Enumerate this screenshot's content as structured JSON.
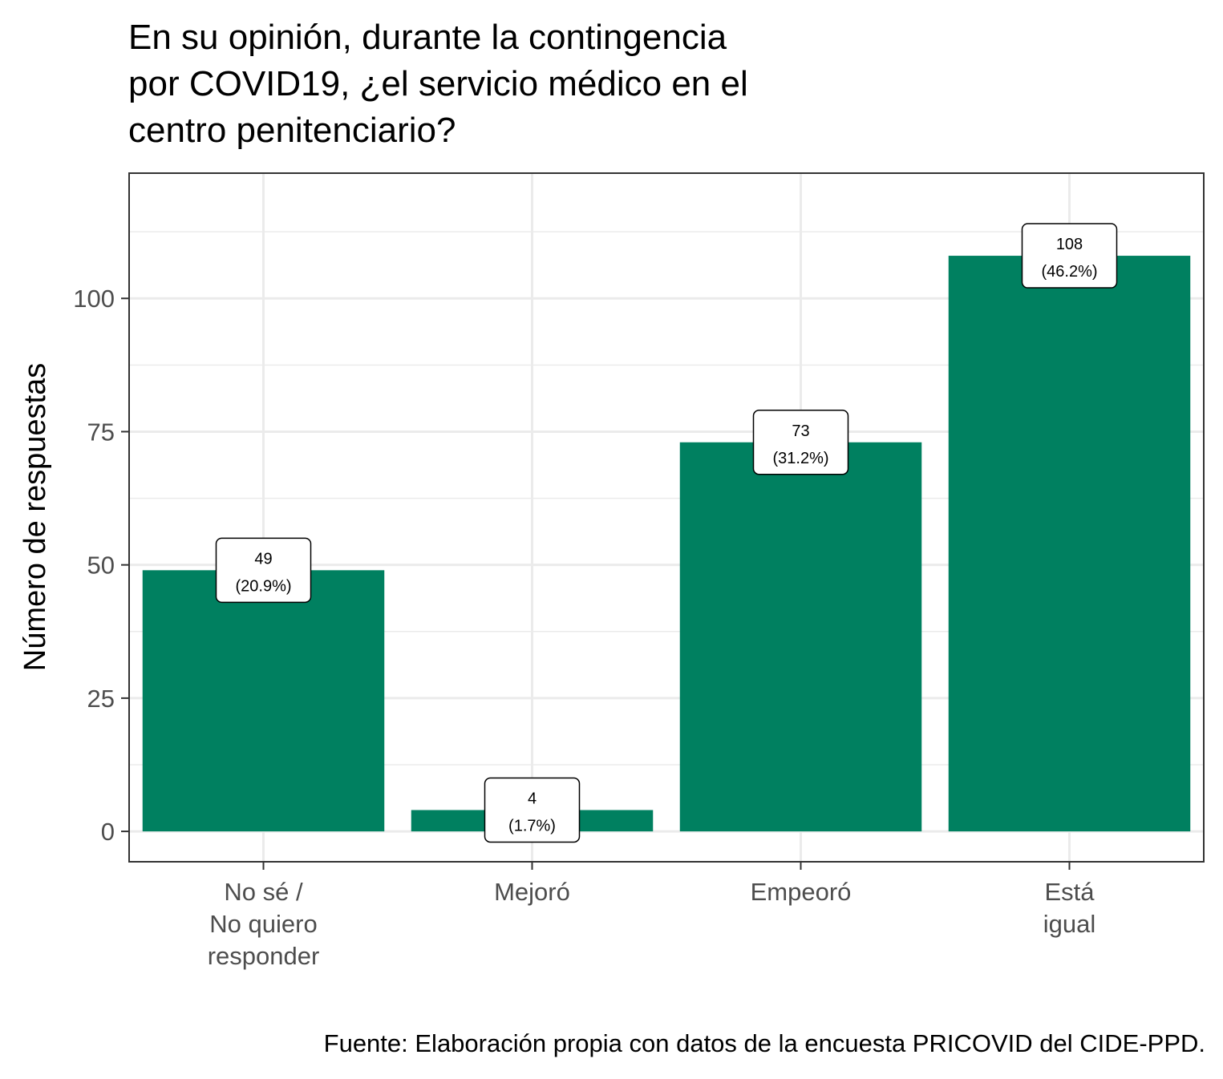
{
  "chart_data": {
    "type": "bar",
    "title": [
      "En su opinión, durante la contingencia",
      "por COVID19, ¿el servicio médico en el",
      "centro penitenciario?"
    ],
    "categories": [
      [
        "No sé /",
        "No quiero",
        "responder"
      ],
      [
        "Mejoró"
      ],
      [
        "Empeoró"
      ],
      [
        "Está",
        "igual"
      ]
    ],
    "values": [
      49,
      4,
      73,
      108
    ],
    "labels": [
      [
        "49",
        "(20.9%)"
      ],
      [
        "4",
        "(1.7%)"
      ],
      [
        "73",
        "(31.2%)"
      ],
      [
        "108",
        "(46.2%)"
      ]
    ],
    "ylabel": "Número de respuestas",
    "yticks": [
      0,
      25,
      50,
      75,
      100
    ],
    "ylim": [
      -5.7,
      123.5
    ],
    "grid": true,
    "bar_color": "#008060",
    "caption": "Fuente: Elaboración propia con datos de la encuesta PRICOVID del CIDE-PPD."
  }
}
